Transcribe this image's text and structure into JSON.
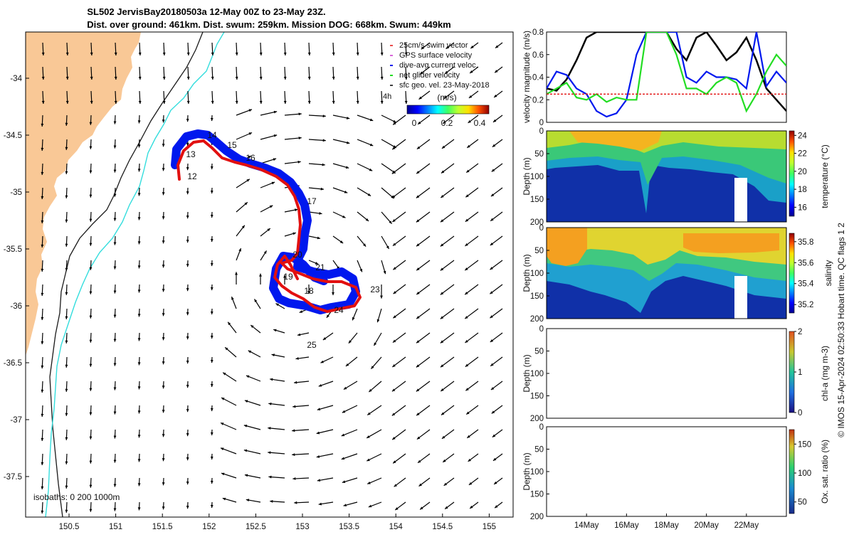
{
  "title": {
    "line1": "SL502 JervisBay20180503a 12-May 00Z to 23-May 23Z.",
    "line2": "Dist. over ground: 461km. Dist. swum: 259km. Mission DOG: 668km. Swum: 449km"
  },
  "credit": "© IMOS 15-Apr-2024 02:50:33 Hobart time. QC flags 1  2",
  "colors": {
    "land": "#f9c896",
    "coast_200": "#1a1a1a",
    "coast_iso": "#33dddd",
    "track_blue": "#0018ee",
    "track_red": "#e21010",
    "arrow": "#000000",
    "swim": "#e21010",
    "gps": "#cc33cc",
    "dive": "#0018ee",
    "net": "#22dd22"
  },
  "map": {
    "xticks": [
      "150.5",
      "151",
      "151.5",
      "152",
      "152.5",
      "153",
      "153.5",
      "154",
      "154.5",
      "155"
    ],
    "yticks": [
      "-34",
      "-34.5",
      "-35",
      "-35.5",
      "-36",
      "-36.5",
      "-37",
      "-37.5"
    ],
    "isobaths_label": "isobaths: 0   200  1000m",
    "day_labels": [
      "12",
      "13",
      "14",
      "15",
      "16",
      "17",
      "18",
      "19",
      "20",
      "21",
      "23",
      "24",
      "25"
    ],
    "legend": [
      "25cm/s swim vector",
      "GPS surface velocity",
      "dive-avg current veloc.",
      "net glider velocity",
      "sfc geo. vel. 23-May-2018"
    ],
    "speed_colorbar": {
      "unit": "(m/s)",
      "ticks": [
        "0",
        "0.2",
        "0.4"
      ]
    }
  },
  "chart_data": [
    {
      "type": "line",
      "title": "",
      "ylabel": "velocity magnitude (m/s)",
      "ylim": [
        0,
        0.8
      ],
      "yticks": [
        "0",
        "0.2",
        "0.4",
        "0.6",
        "0.8"
      ],
      "x": [
        12,
        12.5,
        13,
        13.5,
        14,
        14.5,
        15,
        15.5,
        16,
        16.5,
        17,
        17.5,
        18,
        18.5,
        19,
        19.5,
        20,
        20.5,
        21,
        21.5,
        22,
        22.5,
        23,
        23.5,
        24
      ],
      "series": [
        {
          "name": "geostrophic",
          "values": [
            0.3,
            0.28,
            0.38,
            0.55,
            0.75,
            0.8,
            0.8,
            0.8,
            0.8,
            0.8,
            0.8,
            0.8,
            0.8,
            0.65,
            0.55,
            0.75,
            0.8,
            0.68,
            0.55,
            0.62,
            0.75,
            0.55,
            0.3,
            0.2,
            0.1
          ]
        },
        {
          "name": "dive-avg current",
          "values": [
            0.3,
            0.45,
            0.42,
            0.3,
            0.25,
            0.1,
            0.05,
            0.08,
            0.2,
            0.6,
            0.8,
            0.8,
            0.8,
            0.8,
            0.4,
            0.35,
            0.45,
            0.4,
            0.4,
            0.38,
            0.3,
            0.8,
            0.32,
            0.45,
            0.35
          ]
        },
        {
          "name": "net glider",
          "values": [
            0.25,
            0.3,
            0.35,
            0.22,
            0.2,
            0.25,
            0.18,
            0.22,
            0.2,
            0.2,
            0.8,
            0.8,
            0.8,
            0.6,
            0.3,
            0.3,
            0.25,
            0.35,
            0.4,
            0.35,
            0.1,
            0.25,
            0.45,
            0.6,
            0.5
          ]
        },
        {
          "name": "swim",
          "values": [
            0.25,
            0.25,
            0.25,
            0.25,
            0.25,
            0.25,
            0.25,
            0.25,
            0.25,
            0.25,
            0.25,
            0.25,
            0.25,
            0.25,
            0.25,
            0.25,
            0.25,
            0.25,
            0.25,
            0.25,
            0.25,
            0.25,
            0.25,
            0.25,
            0.25
          ]
        }
      ]
    },
    {
      "type": "heatmap",
      "ylabel": "Depth (m)",
      "yticks": [
        "0",
        "50",
        "100",
        "150",
        "200"
      ],
      "colorbar_label": "temperature (°C)",
      "colorbar_ticks": [
        "16",
        "18",
        "20",
        "22",
        "24"
      ],
      "crange": [
        15,
        24.5
      ]
    },
    {
      "type": "heatmap",
      "ylabel": "Depth (m)",
      "yticks": [
        "0",
        "50",
        "100",
        "150",
        "200"
      ],
      "colorbar_label": "salinity",
      "colorbar_ticks": [
        "35.2",
        "35.4",
        "35.6",
        "35.8"
      ],
      "crange": [
        35.12,
        35.88
      ]
    },
    {
      "type": "heatmap",
      "ylabel": "Depth (m)",
      "yticks": [
        "0",
        "50",
        "100",
        "150",
        "200"
      ],
      "colorbar_label": "chl-a (mg m-3)",
      "colorbar_ticks": [
        "0",
        "1",
        "2"
      ],
      "crange": [
        0,
        2
      ]
    },
    {
      "type": "heatmap",
      "ylabel": "Depth (m)",
      "yticks": [
        "0",
        "50",
        "100",
        "150",
        "200"
      ],
      "colorbar_label": "Ox. sat. ratio (%)",
      "colorbar_ticks": [
        "50",
        "100",
        "150"
      ],
      "crange": [
        30,
        175
      ],
      "xticks": [
        "14May",
        "16May",
        "18May",
        "20May",
        "22May"
      ]
    }
  ]
}
